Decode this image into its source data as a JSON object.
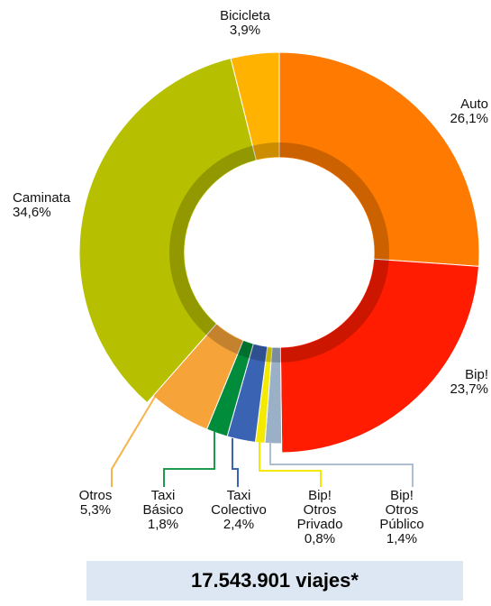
{
  "chart_data": {
    "type": "pie",
    "variant": "donut",
    "start": "top, clockwise",
    "slices": [
      {
        "name": "Auto",
        "label_value": "26,1%",
        "value": 26.1,
        "color": "#ff7a00"
      },
      {
        "name": "Bip!",
        "label_value": "23,7%",
        "value": 23.7,
        "color": "#ff1c00"
      },
      {
        "name": "Bip! Otros Público",
        "label_value": "1,4%",
        "value": 1.4,
        "color": "#9ab0c6"
      },
      {
        "name": "Bip! Otros Privado",
        "label_value": "0,8%",
        "value": 0.8,
        "color": "#f4ea00"
      },
      {
        "name": "Taxi Colectivo",
        "label_value": "2,4%",
        "value": 2.4,
        "color": "#3a63b4"
      },
      {
        "name": "Taxi Básico",
        "label_value": "1,8%",
        "value": 1.8,
        "color": "#008c3a"
      },
      {
        "name": "Otros",
        "label_value": "5,3%",
        "value": 5.3,
        "color": "#f6a33a"
      },
      {
        "name": "Caminata",
        "label_value": "34,6%",
        "value": 34.6,
        "color": "#b7c000"
      },
      {
        "name": "Bicicleta",
        "label_value": "3,9%",
        "value": 3.9,
        "color": "#ffb200"
      }
    ],
    "labels": [
      {
        "lines": [
          "Bicicleta"
        ],
        "value": "3,9%"
      },
      {
        "lines": [
          "Auto"
        ],
        "value": "26,1%"
      },
      {
        "lines": [
          "Caminata"
        ],
        "value": "34,6%"
      },
      {
        "lines": [
          "Bip!"
        ],
        "value": "23,7%"
      },
      {
        "lines": [
          "Otros"
        ],
        "value": "5,3%"
      },
      {
        "lines": [
          "Taxi",
          "Básico"
        ],
        "value": "1,8%"
      },
      {
        "lines": [
          "Taxi",
          "Colectivo"
        ],
        "value": "2,4%"
      },
      {
        "lines": [
          "Bip!",
          "Otros",
          "Privado"
        ],
        "value": "0,8%"
      },
      {
        "lines": [
          "Bip!",
          "Otros",
          "Público"
        ],
        "value": "1,4%"
      }
    ],
    "total": "17.543.901 viajes*"
  }
}
